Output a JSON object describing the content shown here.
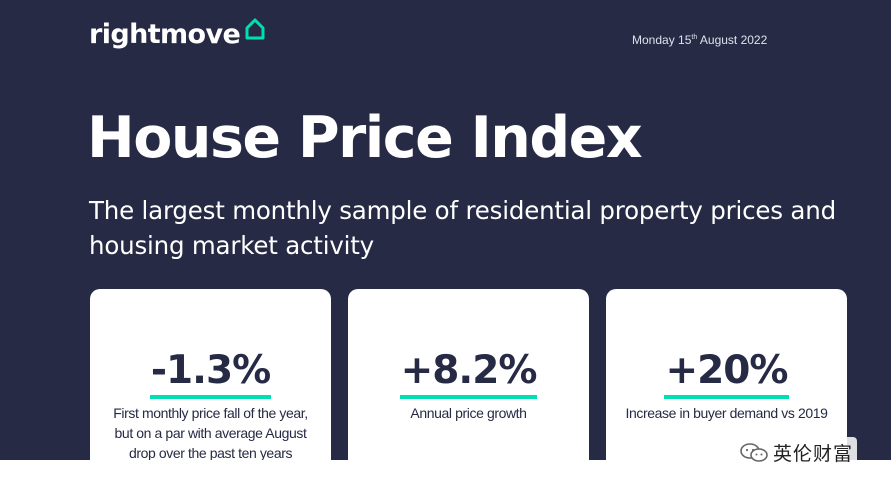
{
  "brand": {
    "name": "rightmove",
    "accent": "#00deb6",
    "background": "#262a44"
  },
  "header": {
    "date_prefix": "Monday 15",
    "date_sup": "th",
    "date_suffix": " August 2022"
  },
  "title": "House Price Index",
  "subtitle": "The largest monthly sample of residential property prices and housing market activity",
  "cards": [
    {
      "value": "-1.3%",
      "description": "First monthly price fall of the year, but on a par with average August drop over the past ten years"
    },
    {
      "value": "+8.2%",
      "description": "Annual price growth"
    },
    {
      "value": "+20%",
      "description": "Increase in buyer demand vs 2019"
    }
  ],
  "watermark": {
    "text": "英伦财富",
    "icon": "wechat-icon"
  }
}
